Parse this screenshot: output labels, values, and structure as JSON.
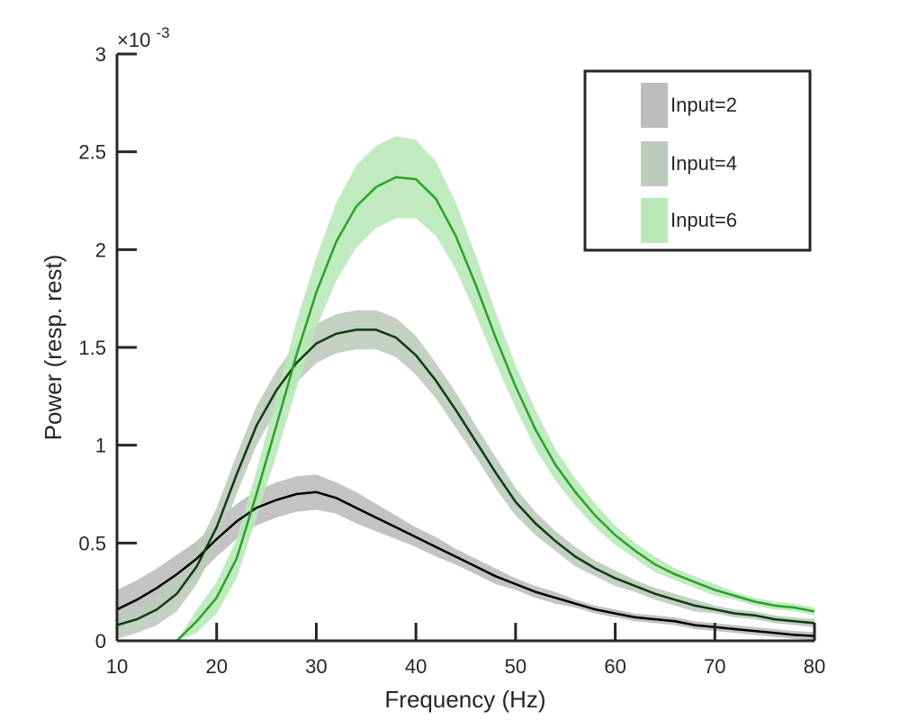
{
  "chart_data": {
    "type": "area",
    "title": "",
    "xlabel": "Frequency (Hz)",
    "ylabel": "Power (resp. rest)",
    "y_multiplier": {
      "base": "×10",
      "exponent": "-3"
    },
    "xlim": [
      10,
      80
    ],
    "ylim": [
      0,
      3
    ],
    "x_ticks": [
      10,
      20,
      30,
      40,
      50,
      60,
      70,
      80
    ],
    "y_ticks": [
      0,
      0.5,
      1,
      1.5,
      2,
      2.5,
      3
    ],
    "y_tick_labels": [
      "0",
      "0.5",
      "1",
      "1.5",
      "2",
      "2.5",
      "3"
    ],
    "grid": false,
    "legend_position": "top-right",
    "x": [
      10,
      12,
      14,
      16,
      18,
      20,
      22,
      24,
      26,
      28,
      30,
      32,
      34,
      36,
      38,
      40,
      42,
      44,
      46,
      48,
      50,
      52,
      54,
      56,
      58,
      60,
      62,
      64,
      66,
      68,
      70,
      72,
      74,
      76,
      78,
      80
    ],
    "series": [
      {
        "name": "Input=2",
        "line_color": "#000000",
        "band_color": "#bdbdbd",
        "values": [
          0.16,
          0.21,
          0.27,
          0.34,
          0.42,
          0.52,
          0.61,
          0.68,
          0.72,
          0.75,
          0.76,
          0.73,
          0.68,
          0.63,
          0.58,
          0.53,
          0.48,
          0.43,
          0.38,
          0.33,
          0.29,
          0.25,
          0.22,
          0.19,
          0.16,
          0.14,
          0.12,
          0.11,
          0.1,
          0.08,
          0.07,
          0.06,
          0.05,
          0.04,
          0.03,
          0.025
        ],
        "band": [
          0.1,
          0.1,
          0.1,
          0.1,
          0.09,
          0.09,
          0.09,
          0.09,
          0.09,
          0.09,
          0.09,
          0.08,
          0.08,
          0.07,
          0.06,
          0.05,
          0.05,
          0.04,
          0.04,
          0.04,
          0.03,
          0.03,
          0.03,
          0.02,
          0.02,
          0.02,
          0.02,
          0.02,
          0.02,
          0.02,
          0.02,
          0.02,
          0.02,
          0.02,
          0.02,
          0.02
        ]
      },
      {
        "name": "Input=4",
        "line_color": "#0f3a0f",
        "band_color": "#bdcbbd",
        "values": [
          0.08,
          0.11,
          0.16,
          0.24,
          0.38,
          0.58,
          0.85,
          1.1,
          1.28,
          1.42,
          1.52,
          1.57,
          1.59,
          1.59,
          1.55,
          1.46,
          1.33,
          1.18,
          1.02,
          0.86,
          0.71,
          0.6,
          0.51,
          0.43,
          0.37,
          0.32,
          0.28,
          0.24,
          0.21,
          0.18,
          0.16,
          0.14,
          0.13,
          0.11,
          0.1,
          0.09
        ],
        "band": [
          0.07,
          0.07,
          0.08,
          0.09,
          0.09,
          0.1,
          0.1,
          0.1,
          0.1,
          0.1,
          0.1,
          0.1,
          0.1,
          0.1,
          0.1,
          0.1,
          0.09,
          0.09,
          0.08,
          0.08,
          0.07,
          0.06,
          0.05,
          0.05,
          0.04,
          0.04,
          0.03,
          0.03,
          0.03,
          0.03,
          0.02,
          0.02,
          0.02,
          0.02,
          0.02,
          0.02
        ]
      },
      {
        "name": "Input=6",
        "line_color": "#2aa02a",
        "band_color": "#b9e9b9",
        "values": [
          0.0,
          0.0,
          0.0,
          0.0,
          0.1,
          0.22,
          0.42,
          0.75,
          1.1,
          1.46,
          1.78,
          2.04,
          2.22,
          2.32,
          2.37,
          2.36,
          2.26,
          2.07,
          1.82,
          1.55,
          1.3,
          1.08,
          0.9,
          0.76,
          0.64,
          0.54,
          0.46,
          0.39,
          0.34,
          0.3,
          0.26,
          0.23,
          0.2,
          0.18,
          0.17,
          0.15
        ],
        "band": [
          0.0,
          0.0,
          0.0,
          0.0,
          0.06,
          0.08,
          0.1,
          0.12,
          0.15,
          0.17,
          0.18,
          0.2,
          0.21,
          0.21,
          0.21,
          0.2,
          0.19,
          0.17,
          0.15,
          0.13,
          0.11,
          0.1,
          0.08,
          0.07,
          0.06,
          0.05,
          0.04,
          0.04,
          0.03,
          0.03,
          0.03,
          0.02,
          0.02,
          0.02,
          0.02,
          0.02
        ]
      }
    ]
  }
}
